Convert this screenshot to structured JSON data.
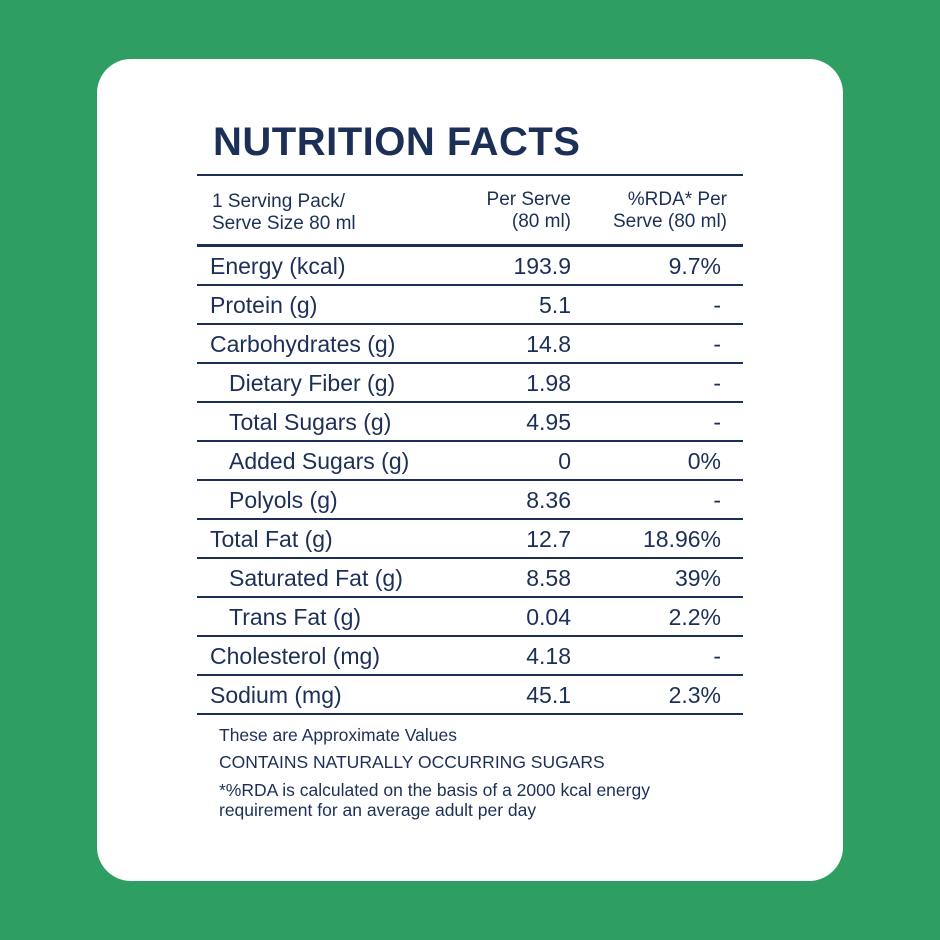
{
  "title": "NUTRITION FACTS",
  "header": {
    "col1": "1 Serving Pack/\nServe Size 80 ml",
    "col2": "Per Serve\n(80 ml)",
    "col3": "%RDA* Per\nServe (80 ml)"
  },
  "rows": [
    {
      "name": "Energy (kcal)",
      "per_serve": "193.9",
      "rda": "9.7%"
    },
    {
      "name": "Protein (g)",
      "per_serve": "5.1",
      "rda": "-"
    },
    {
      "name": "Carbohydrates (g)",
      "per_serve": "14.8",
      "rda": "-"
    },
    {
      "name": "Dietary Fiber (g)",
      "per_serve": "1.98",
      "rda": "-"
    },
    {
      "name": "Total Sugars (g)",
      "per_serve": "4.95",
      "rda": "-"
    },
    {
      "name": "Added Sugars (g)",
      "per_serve": "0",
      "rda": "0%"
    },
    {
      "name": "Polyols (g)",
      "per_serve": "8.36",
      "rda": "-"
    },
    {
      "name": "Total Fat (g)",
      "per_serve": "12.7",
      "rda": "18.96%"
    },
    {
      "name": "Saturated Fat (g)",
      "per_serve": "8.58",
      "rda": "39%"
    },
    {
      "name": "Trans Fat (g)",
      "per_serve": "0.04",
      "rda": "2.2%"
    },
    {
      "name": "Cholesterol (mg)",
      "per_serve": "4.18",
      "rda": "-"
    },
    {
      "name": "Sodium (mg)",
      "per_serve": "45.1",
      "rda": "2.3%"
    }
  ],
  "notes": {
    "line1": "These are Approximate Values",
    "line2": "CONTAINS NATURALLY OCCURRING SUGARS",
    "line3": "*%RDA is calculated on the basis of a 2000 kcal energy\nrequirement for an average adult per day"
  },
  "colors": {
    "background": "#2f9e63",
    "card": "#ffffff",
    "text": "#1c3057"
  }
}
